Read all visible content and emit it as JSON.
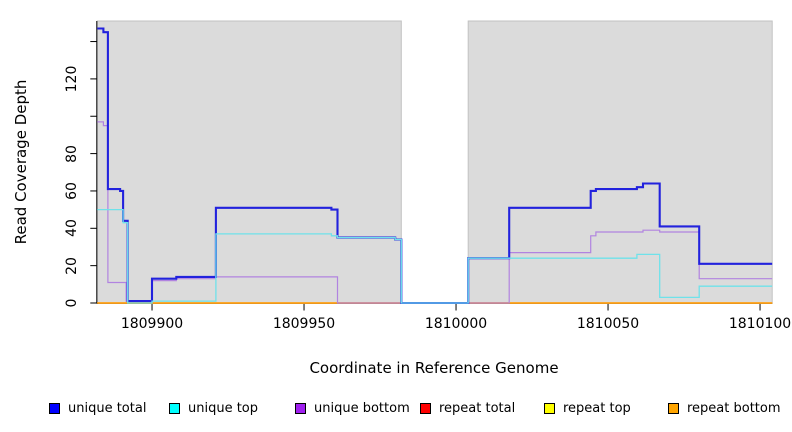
{
  "chart_data": {
    "type": "line",
    "subtype": "step-coverage",
    "title": "",
    "xlabel": "Coordinate in Reference Genome",
    "ylabel": "Read Coverage Depth",
    "xlim": [
      1809882,
      1810104
    ],
    "ylim": [
      0,
      151
    ],
    "grid": false,
    "plot_bg_color": "#dbdbdb",
    "plot_bg_edge_color": "#c2c2c2",
    "no_data_gap": {
      "x_start": 1809982,
      "x_end": 1810004
    },
    "x_ticks": [
      1809900,
      1809950,
      1810000,
      1810050,
      1810100
    ],
    "x_tick_labels": [
      "1809900",
      "1809950",
      "1810000",
      "1810050",
      "1810100"
    ],
    "y_ticks": [
      0,
      20,
      40,
      60,
      80,
      100,
      120,
      140
    ],
    "y_labeled_ticks": [
      0,
      20,
      40,
      60,
      80,
      120
    ],
    "y_tick_labels": [
      "0",
      "20",
      "40",
      "60",
      "80",
      "120"
    ],
    "legend_position": "bottom",
    "legend": [
      {
        "label": "unique total",
        "color": "#0000ff"
      },
      {
        "label": "unique top",
        "color": "#00ffff"
      },
      {
        "label": "unique bottom",
        "color": "#a020f0"
      },
      {
        "label": "repeat total",
        "color": "#ff0000"
      },
      {
        "label": "repeat top",
        "color": "#ffff00"
      },
      {
        "label": "repeat bottom",
        "color": "#ffa500"
      }
    ],
    "series": [
      {
        "name": "repeat total",
        "color": "#ee0000",
        "line_width": 1.2,
        "x_end": 1810104,
        "points": [
          [
            1809882,
            0
          ]
        ]
      },
      {
        "name": "repeat top",
        "color": "#ffff00",
        "line_width": 1.2,
        "x_end": 1810104,
        "points": [
          [
            1809882,
            0
          ]
        ]
      },
      {
        "name": "repeat bottom",
        "color": "#ffa520",
        "line_width": 1.8,
        "x_end": 1810104,
        "points": [
          [
            1809882,
            0
          ]
        ]
      },
      {
        "name": "unique bottom",
        "color": "#b183e0",
        "line_width": 1.2,
        "x_end": 1810104,
        "points": [
          [
            1809882,
            97
          ],
          [
            1809884,
            95
          ],
          [
            1809885.5,
            11
          ],
          [
            1809891.5,
            1
          ],
          [
            1809900,
            12
          ],
          [
            1809908,
            13
          ],
          [
            1809921,
            14
          ],
          [
            1809961,
            0
          ],
          [
            1810017.5,
            27
          ],
          [
            1810044.3,
            36
          ],
          [
            1810046,
            38
          ],
          [
            1810061.5,
            39
          ],
          [
            1810067,
            38
          ],
          [
            1810080,
            13
          ]
        ]
      },
      {
        "name": "unique total",
        "color": "#2222dd",
        "line_width": 2.1,
        "x_end": 1810104,
        "points": [
          [
            1809882,
            147
          ],
          [
            1809884,
            145
          ],
          [
            1809885.5,
            61
          ],
          [
            1809889.5,
            60
          ],
          [
            1809890.5,
            44
          ],
          [
            1809892,
            1
          ],
          [
            1809900,
            13
          ],
          [
            1809908,
            14
          ],
          [
            1809921,
            51
          ],
          [
            1809959,
            50
          ],
          [
            1809961,
            35
          ],
          [
            1809980,
            34
          ],
          [
            1809982,
            0
          ],
          [
            1810004,
            24
          ],
          [
            1810017.5,
            51
          ],
          [
            1810044.3,
            60
          ],
          [
            1810046,
            61
          ],
          [
            1810059.5,
            62
          ],
          [
            1810061.5,
            64
          ],
          [
            1810067,
            41
          ],
          [
            1810080,
            21
          ]
        ]
      },
      {
        "name": "unique top",
        "color": "#6fe2ea",
        "line_width": 1.3,
        "x_end": 1810104,
        "points": [
          [
            1809882,
            50
          ],
          [
            1809890.5,
            43
          ],
          [
            1809892,
            0
          ],
          [
            1809900,
            1
          ],
          [
            1809921,
            37
          ],
          [
            1809959,
            36
          ],
          [
            1809961,
            35
          ],
          [
            1809980,
            34
          ],
          [
            1809982,
            0
          ],
          [
            1810004,
            24
          ],
          [
            1810059.5,
            26
          ],
          [
            1810067,
            3
          ],
          [
            1810080,
            9
          ]
        ]
      }
    ]
  },
  "layout_text": {
    "xlabel": "Coordinate in Reference Genome",
    "ylabel": "Read Coverage Depth"
  }
}
